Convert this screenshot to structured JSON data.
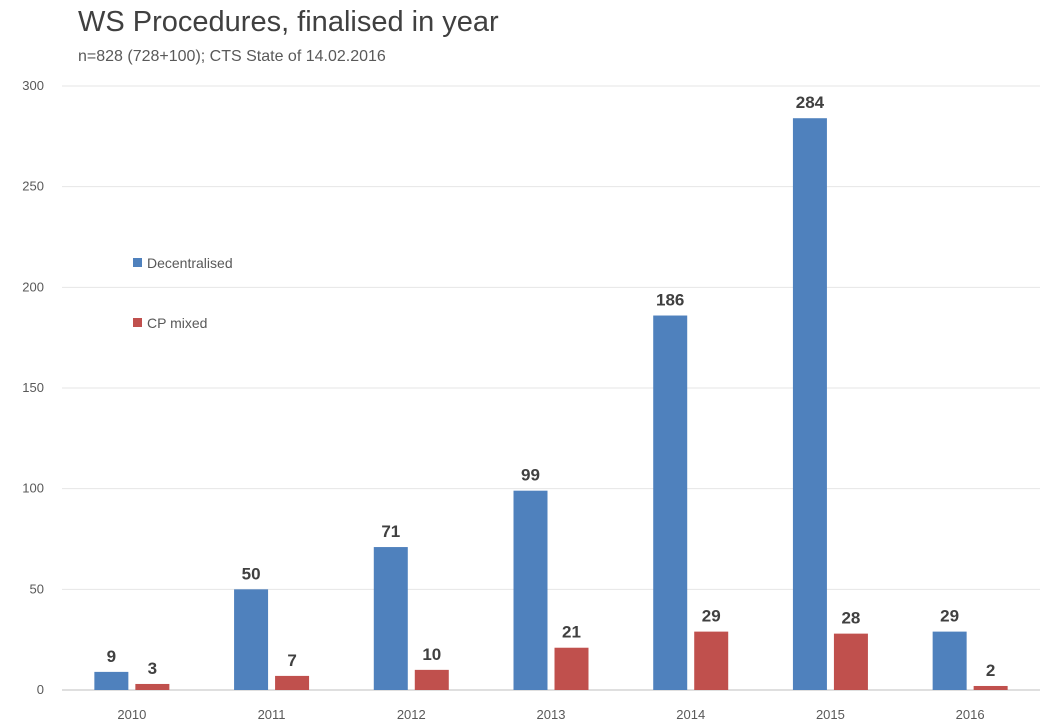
{
  "chart_data": {
    "type": "bar",
    "title": "WS Procedures, finalised in year",
    "subtitle": "n=828 (728+100); CTS State of 14.02.2016",
    "categories": [
      "2010",
      "2011",
      "2012",
      "2013",
      "2014",
      "2015",
      "2016"
    ],
    "series": [
      {
        "name": "Decentralised",
        "color": "#4f81bd",
        "values": [
          9,
          50,
          71,
          99,
          186,
          284,
          29
        ]
      },
      {
        "name": "CP mixed",
        "color": "#c0504d",
        "values": [
          3,
          7,
          10,
          21,
          29,
          28,
          2
        ]
      }
    ],
    "ylim": [
      0,
      300
    ],
    "yticks": [
      0,
      50,
      100,
      150,
      200,
      250,
      300
    ],
    "grid": true,
    "legend_position": "left-middle",
    "xlabel": "",
    "ylabel": ""
  }
}
